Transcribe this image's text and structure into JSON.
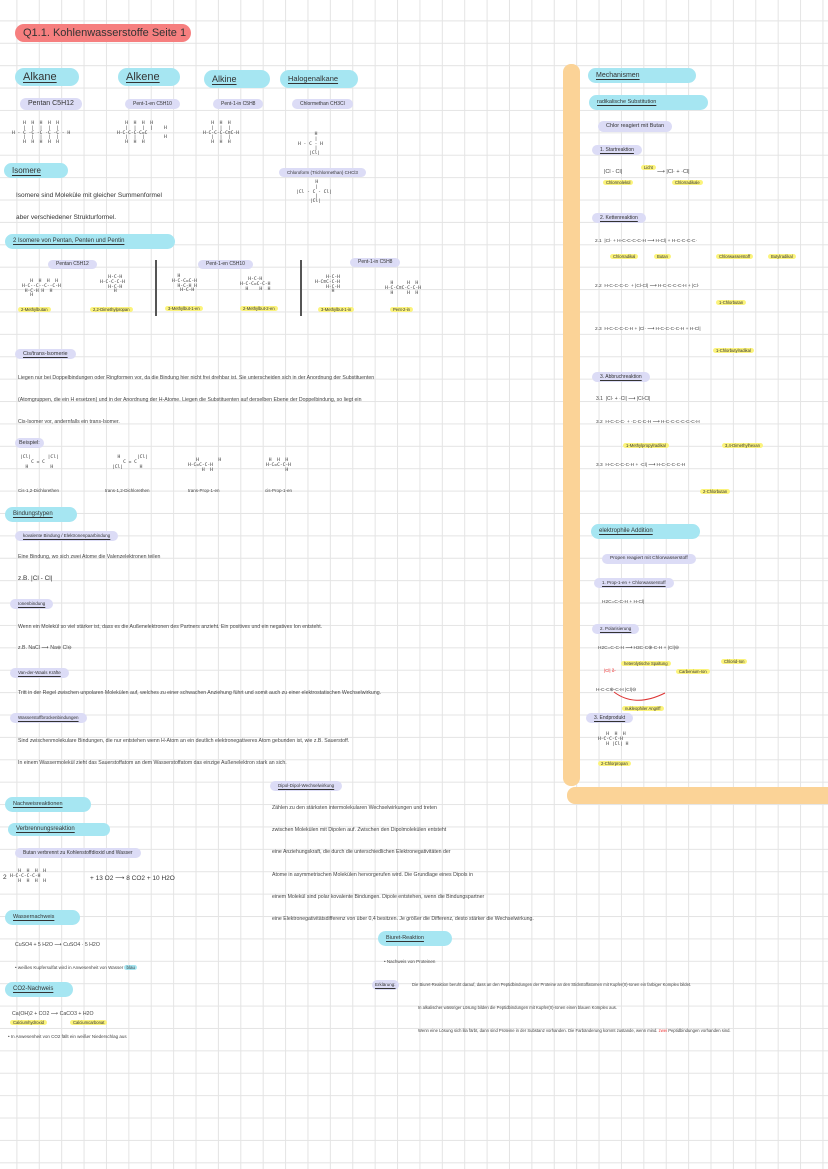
{
  "title": "Q1.1. Kohlenwasserstoffe Seite 1",
  "colors": {
    "title": "#f67f7f",
    "heading": "#a6e6f2",
    "subheading": "#dcdcf6",
    "highlight": "#fbf37c",
    "divider": "#fbd397"
  },
  "groups": [
    {
      "name": "Alkane",
      "example": "Pentan C5H12",
      "formula": "    H  H  H  H  H\n    |  |  |  |  |\nH - C -C -C -C -C - H\n    |  |  |  |  |\n    H  H  H  H  H"
    },
    {
      "name": "Alkene",
      "example": "Pent-1-en C5H10",
      "formula": "   H  H  H  H\n   |  |  |  |    H\nH-C-C-C-C=C\n   |  |  |       H\n   H  H  H"
    },
    {
      "name": "Alkine",
      "example": "Pent-1-in C5H8",
      "formula": "   H  H  H\n   |  |  |\nH-C-C-C-C≡C-H\n   |  |  |\n   H  H  H"
    },
    {
      "name": "Halogenalkane",
      "example": "Chlormethan CH3Cl",
      "formula": "      H\n      |\nH - C - H\n      |\n    |Cl|"
    }
  ],
  "chloroform": {
    "label": "Chloroform (Trichlormethan) CHCl3",
    "formula": "       H\n       |\n|Cl - C - Cl|\n       |\n     |Cl|"
  },
  "isomere": {
    "heading": "Isomere",
    "lines": [
      "Isomere sind Moleküle mit gleicher Summenformel",
      "aber verschiedener Strukturformel."
    ]
  },
  "isomers_section": {
    "heading": "2 Isomere von Pentan, Penten und Pentin",
    "groups": [
      {
        "label": "Pentan C5H12",
        "items": [
          {
            "name": "2-Methylbutan",
            "formula": "   H  H  H  H\nH-C--C--C--C-H\n H-C-H H  H\n   H"
          },
          {
            "name": "2,2-Dimethylpropan",
            "formula": "   H-C-H\nH-C-C-C-H\n   H-C-H\n     H"
          }
        ]
      },
      {
        "label": "Pent-1-en C5H10",
        "items": [
          {
            "name": "3-Methylbut-1-en",
            "formula": "  H\nH-C-C=C-H\n  H-C-H H\n   H-C-H"
          },
          {
            "name": "2-Methylbut-2-en",
            "formula": "   H-C-H\nH-C-C=C-C-H\n  H    H  H"
          }
        ]
      },
      {
        "label": "Pent-1-in C5H8",
        "items": [
          {
            "name": "3-Methylbut-1-in",
            "formula": "    H-C-H\nH-C≡C-C-H\n    H-C-H\n      H"
          },
          {
            "name": "Pent-2-in",
            "formula": "  H     H  H\nH-C-C≡C-C-C-H\n  H     H  H"
          }
        ]
      }
    ]
  },
  "cis_trans": {
    "heading": "Cis/trans-Isomerie",
    "lines": [
      "Liegen nur bei Doppelbindungen oder Ringformen vor, da die Bindung hier nicht frei drehbar ist. Sie unterscheiden sich in der Anordnung der Substituenten",
      "(Atomgruppen, die ein H ersetzen) und in der Anordnung der H-Atome. Liegen die Substituenten auf derselben Ebene der Doppelbindung, so liegt ein",
      "Cis-Isomer vor, andernfalls ein trans-Isomer."
    ],
    "example_label": "Beispiel:",
    "examples": [
      {
        "name": "Cis-1,2-Dichlorethen",
        "formula": "|Cl|      |Cl|\n    C = C\n  H        H"
      },
      {
        "name": "trans-1,2-Dichlorethen",
        "formula": "  H      |Cl|\n    C = C\n|Cl|      H"
      },
      {
        "name": "trans-Prop-1-en",
        "formula": "   H       H\nH-C=C-C-H\n     H  H"
      },
      {
        "name": "cis-Prop-1-en",
        "formula": " H  H  H\nH-C=C-C-H\n       H"
      }
    ]
  },
  "bindungstypen": {
    "heading": "Bindungstypen",
    "kovalent": {
      "heading": "kovalente Bindung / Elektronenpaarbindung",
      "text": "Eine Bindung, wo sich zwei Atome die Valenzelektronen teilen",
      "example": "z.B.  |Cl - Cl|"
    },
    "ionen": {
      "heading": "Ionenbindung",
      "text": "Wenn ein Molekül so viel stärker ist, dass es die Außenelektronen des Partners anzieht. Ein positives und ein negatives Ion entsteht.",
      "example": "z.B.  NaCl  ⟶  Na⊕ Cl⊖"
    },
    "vdw": {
      "heading": "Van-der-Waals Kräfte",
      "text": "Tritt in der Regel zwischen unpolaren Molekülen auf, welches zu einer schwachen Anziehung führt und somit auch zu einer elektrostatischen Wechselwirkung."
    },
    "wasserstoff": {
      "heading": "Wasserstoffbrückenbindungen",
      "lines": [
        "Sind zwischenmolekulare Bindungen, die nur entstehen wenn H-Atom an ein deutlich elektronegativeres Atom gebunden ist, wie z.B. Sauerstoff.",
        "In einem Wassermolekül zieht das Sauerstoffatom an dem Wasserstoffatom das einzige Außenelektron stark an sich."
      ]
    },
    "dipol": {
      "heading": "Dipol-Dipol-Wechselwirkung",
      "lines": [
        "Zählen zu den stärksten intermolekularen Wechselwirkungen und treten",
        "zwischen Molekülen mit Dipolen auf. Zwischen den Dipolmolekülen entsteht",
        "eine Anziehungskraft, die durch die unterschiedlichen Elektronegativitäten der",
        "Atome in asymmetrischen Molekülen hervorgerufen wird. Die Grundlage eines Dipols in",
        "einem Molekül sind polar kovalente Bindungen. Dipole entstehen, wenn die Bindungspartner",
        "eine Elektronegativitätsdifferenz von über 0,4 besitzen. Je größer die Differenz, desto stärker die Wechselwirkung."
      ]
    }
  },
  "nachweis": {
    "heading": "Nachweisreaktionen",
    "verbrennung": {
      "heading": "Verbrennungsreaktion",
      "sub": "Butan verbrennt zu Kohlenstoffdioxid und Wasser",
      "equation_prefix": "2",
      "formula": "   H  H  H  H\nH-C-C-C-C-H\n   H  H  H  H",
      "equation": "+ 13 O2  ⟶  8 CO2 + 10 H2O"
    },
    "wasser": {
      "heading": "Wassernachweis",
      "equation": "CuSO4 + 5 H2O ⟶ CuSO4 · 5 H2O",
      "note": "• weißes Kupfersulfat wird in Anwesenheit von Wasser",
      "note_highlight": "blau"
    },
    "co2": {
      "heading": "CO2-Nachweis",
      "equation": "Ca(OH)2 + CO2 ⟶ CaCO3 + H2O",
      "labels": [
        "Calciumhydroxid",
        "Calciumcarbonat"
      ],
      "note": "• In Anwesenheit von CO2 fällt ein weißer Niederschlag aus"
    },
    "biuret": {
      "heading": "Biuret-Reaktion",
      "sub": "• Nachweis von Proteinen",
      "erkl_label": "Erklärung:",
      "lines": [
        "Die Biuret-Reaktion beruht darauf, dass an den Peptidbindungen der Proteine an den Stickstoffatomen mit Kupfer(II)-Ionen ein farbiger Komplex bildet.",
        "In alkalischer wässriger Lösung bilden die Peptidbindungen mit Kupfer(II)-Ionen einen blauen Komplex aus.",
        "Wenn eine Lösung sich lila färbt, dann sind Proteine in der Substanz vorhanden. Die Farbänderung kommt zustande, wenn mind."
      ],
      "red_word": "zwei",
      "line_end": "Peptidbindungen vorhanden sind."
    }
  },
  "mechanismen": {
    "heading": "Mechanismen",
    "radikal": {
      "heading": "radikalische Substitution",
      "sub": "Chlor reagiert mit Butan",
      "start": {
        "heading": "1. Startreaktion",
        "equation": "|Cl - Cl|",
        "arrow_label": "Licht",
        "products": "⟶ |Cl· + ·Cl|",
        "labels": [
          "Chlormolekül",
          "Chlorradikale"
        ]
      },
      "kette": {
        "heading": "2. Kettenreaktion",
        "steps": [
          {
            "num": "2.1",
            "eq": "|Cl·  +  H-C-C-C-C-H  ⟶  H-Cl|  +  H-C-C-C-C·",
            "labels": [
              "Chlorradikal",
              "Butan",
              "Chlorwasserstoff",
              "Butylradikal"
            ]
          },
          {
            "num": "2.2",
            "eq": "H-C-C-C-C·  +  |Cl-Cl|  ⟶  H-C-C-C-C-H  +  |Cl·",
            "labels": [
              "1-Chlorbutan"
            ]
          },
          {
            "num": "2.3",
            "eq": "H-C-C-C-C-H  +  |Cl·  ⟶  H-C-C-C-C-H  +  H-Cl|",
            "labels": [
              "1-Chlorbutylradikal"
            ]
          }
        ]
      },
      "abbruch": {
        "heading": "3. Abbruchreaktion",
        "steps": [
          {
            "num": "3.1",
            "eq": "|Cl·  +  ·Cl|  ⟶  |Cl-Cl|",
            "labels": []
          },
          {
            "num": "3.2",
            "eq": "H-C-C-C·  +  ·C-C-C-H  ⟶  H-C-C-C-C-C-C-H",
            "labels": [
              "1-Methylpropylradikal",
              "3,4-Dimethylhexan"
            ]
          },
          {
            "num": "3.3",
            "eq": "H-C-C-C-C-H  +  ·Cl|  ⟶  H-C-C-C-C-H",
            "labels": [
              "2-Chlorbutan"
            ]
          }
        ]
      }
    },
    "elektrophil": {
      "heading": "elektrophile Addition",
      "sub": "Propen reagiert mit Chlorwasserstoff",
      "step1": {
        "heading": "1. Prop-1-en + Chlorwasserstoff",
        "eq": "H2C=C-C-H  +  H-Cl|"
      },
      "step2": {
        "heading": "2. Polarisierung",
        "eq": "H2C=C-C-H  ⟶  H3C-C⊕-C-H  +  |Cl|⊖",
        "labels": [
          "heterolytische Spaltung",
          "Carbenium-Ion",
          "Chlorid-Ion"
        ],
        "partial": "|Cl| δ-",
        "attack_eq": "H-C-C⊕-C-H      |Cl|⊖",
        "attack_label": "nukleophiler Angriff"
      },
      "step3": {
        "heading": "3. Endprodukt",
        "formula": "   H  H  H\nH-C-C-C-H\n   H |Cl| H",
        "label": "2-Chlorpropan"
      }
    }
  }
}
